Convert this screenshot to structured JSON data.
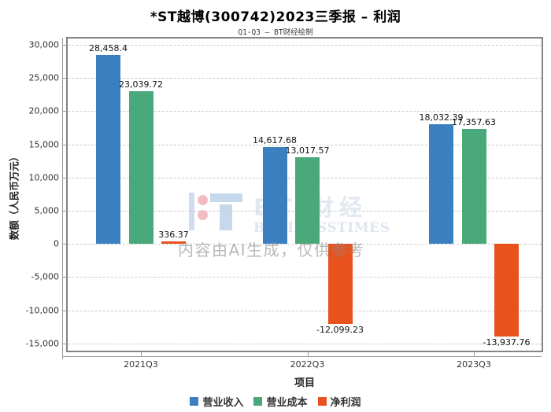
{
  "header": {
    "title": "*ST越博(300742)2023三季报 – 利润",
    "subtitle": "Q1-Q3 – BT财经绘制"
  },
  "watermark": {
    "brand": "BT 财经",
    "brand_sub": "BUSINESSTIMES",
    "ai_notice": "内容由AI生成，仅供参考"
  },
  "chart_data": {
    "type": "bar",
    "title": "*ST越博(300742)2023三季报 – 利润",
    "subtitle": "Q1-Q3 – BT财经绘制",
    "categories": [
      "2021Q3",
      "2022Q3",
      "2023Q3"
    ],
    "series": [
      {
        "name": "营业收入",
        "color": "#3a80c1",
        "values": [
          28458.4,
          14617.68,
          18032.39
        ],
        "labels": [
          "28,458.4",
          "14,617.68",
          "18,032.39"
        ]
      },
      {
        "name": "营业成本",
        "color": "#4aa97b",
        "values": [
          23039.72,
          13017.57,
          17357.63
        ],
        "labels": [
          "23,039.72",
          "13,017.57",
          "17,357.63"
        ]
      },
      {
        "name": "净利润",
        "color": "#e8521d",
        "values": [
          336.37,
          -12099.23,
          -13937.76
        ],
        "labels": [
          "336.37",
          "-12,099.23",
          "-13,937.76"
        ]
      }
    ],
    "xlabel": "项目",
    "ylabel": "数额（人民币万元）",
    "ylim": [
      -15000,
      30000
    ],
    "ytick_step": 5000,
    "ytick_labels": [
      "30,000",
      "25,000",
      "20,000",
      "15,000",
      "10,000",
      "5,000",
      "0",
      "-5,000",
      "-10,000",
      "-15,000"
    ],
    "grid": "horizontal dashed",
    "legend_position": "bottom"
  }
}
